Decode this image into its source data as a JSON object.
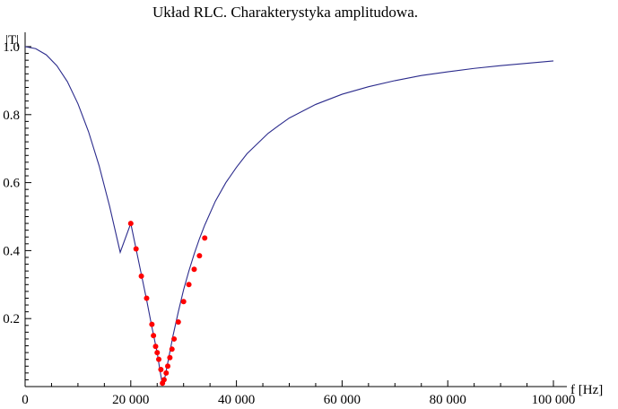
{
  "chart_data": {
    "type": "line",
    "title": "Układ RLC. Charakterystyka amplitudowa.",
    "xlabel": "f [Hz]",
    "ylabel": "|T|",
    "xlim": [
      0,
      100000
    ],
    "ylim": [
      0,
      1.0
    ],
    "x_ticks": [
      0,
      20000,
      40000,
      60000,
      80000,
      100000
    ],
    "x_tick_labels": [
      "0",
      "20 000",
      "40 000",
      "60 000",
      "80 000",
      "100 000"
    ],
    "y_ticks": [
      0.2,
      0.4,
      0.6,
      0.8,
      1.0
    ],
    "y_tick_labels": [
      "0.2",
      "0.4",
      "0.6",
      "0.8",
      "1.0"
    ],
    "grid": false,
    "series": [
      {
        "kind": "line",
        "color": "#2b2b8c",
        "x": [
          0,
          2000,
          4000,
          6000,
          8000,
          10000,
          12000,
          14000,
          16000,
          18000,
          20000,
          21000,
          22000,
          23000,
          24000,
          25000,
          25500,
          26000,
          26500,
          27000,
          28000,
          29000,
          30000,
          31000,
          32000,
          33000,
          34000,
          36000,
          38000,
          40000,
          42000,
          44000,
          46000,
          48000,
          50000,
          55000,
          60000,
          65000,
          70000,
          75000,
          80000,
          85000,
          90000,
          95000,
          100000
        ],
        "y": [
          1.0,
          0.994,
          0.976,
          0.944,
          0.897,
          0.832,
          0.75,
          0.65,
          0.53,
          0.395,
          0.48,
          0.405,
          0.33,
          0.255,
          0.175,
          0.1,
          0.05,
          0.005,
          0.03,
          0.07,
          0.15,
          0.22,
          0.285,
          0.34,
          0.39,
          0.435,
          0.475,
          0.545,
          0.6,
          0.645,
          0.685,
          0.715,
          0.745,
          0.768,
          0.79,
          0.83,
          0.86,
          0.882,
          0.9,
          0.915,
          0.926,
          0.936,
          0.944,
          0.951,
          0.958
        ]
      },
      {
        "kind": "points",
        "color": "#ff0000",
        "x": [
          20000,
          21000,
          22000,
          23000,
          24000,
          24300,
          24700,
          25000,
          25300,
          25700,
          26000,
          26300,
          26700,
          27000,
          27400,
          27800,
          28200,
          29000,
          30000,
          31000,
          32000,
          33000,
          34000
        ],
        "y": [
          0.48,
          0.405,
          0.325,
          0.26,
          0.183,
          0.15,
          0.118,
          0.1,
          0.08,
          0.05,
          0.01,
          0.02,
          0.04,
          0.06,
          0.085,
          0.11,
          0.14,
          0.19,
          0.25,
          0.3,
          0.345,
          0.385,
          0.437
        ]
      }
    ]
  }
}
